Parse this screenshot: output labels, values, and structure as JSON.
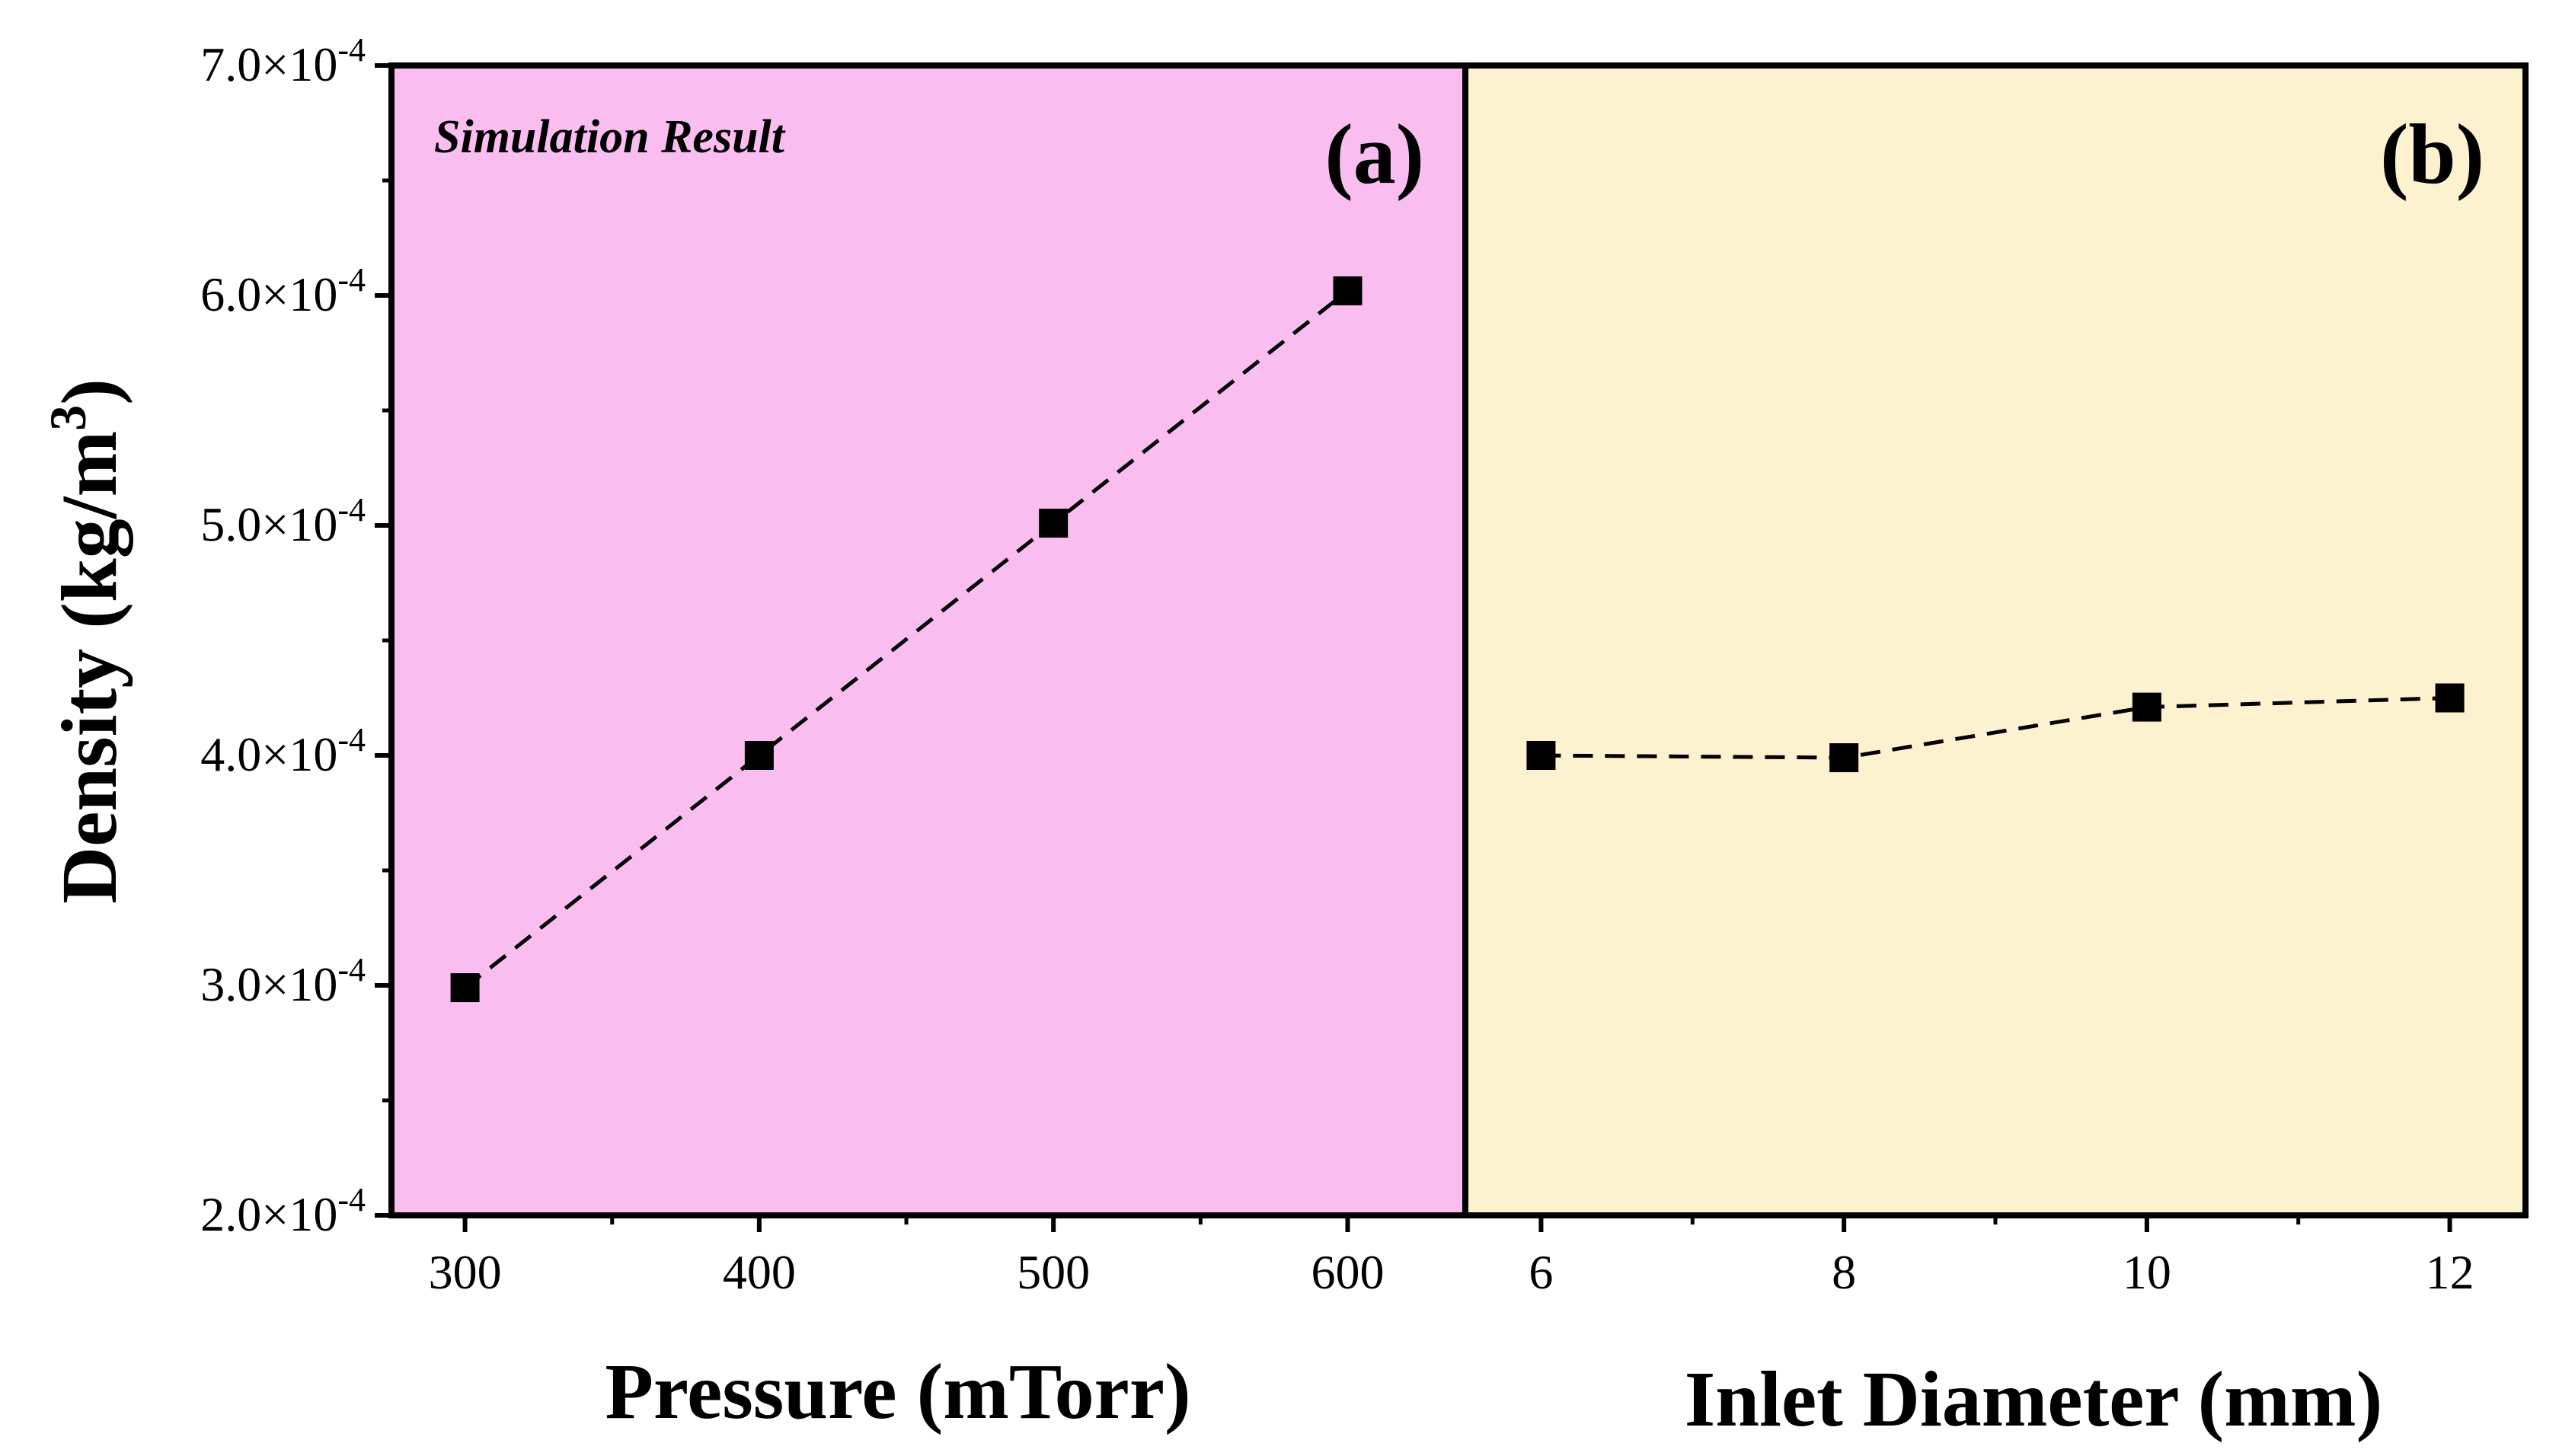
{
  "chart_data": [
    {
      "type": "line",
      "panel_label": "(a)",
      "annotation": "Simulation Result",
      "xlabel": "Pressure (mTorr)",
      "ylabel": "Density (kg/m",
      "ylabel_sup": "3",
      "ylabel_close": ")",
      "x": [
        300,
        400,
        500,
        600
      ],
      "xticks": [
        "300",
        "400",
        "500",
        "600"
      ],
      "xlim": [
        275,
        640
      ],
      "ylim": [
        0.0002,
        0.0007
      ],
      "ytick_values": [
        0.0002,
        0.0003,
        0.0004,
        0.0005,
        0.0006,
        0.0007
      ],
      "ytick_mantissas": [
        "2.0×10",
        "3.0×10",
        "4.0×10",
        "5.0×10",
        "6.0×10",
        "7.0×10"
      ],
      "ytick_exponent": "-4",
      "series": [
        {
          "name": "Density",
          "values": [
            0.000299,
            0.0004,
            0.000501,
            0.000602
          ]
        }
      ],
      "background_color": "#f9bdf0",
      "line_style": "dashed",
      "marker": "square"
    },
    {
      "type": "line",
      "panel_label": "(b)",
      "xlabel": "Inlet Diameter (mm)",
      "x": [
        6,
        8,
        10,
        12
      ],
      "xticks": [
        "6",
        "8",
        "10",
        "12"
      ],
      "xlim": [
        5.5,
        12.5
      ],
      "ylim": [
        0.0002,
        0.0007
      ],
      "series": [
        {
          "name": "Density",
          "values": [
            0.0004,
            0.000399,
            0.000421,
            0.000425
          ]
        }
      ],
      "background_color": "#fdf2d0",
      "line_style": "dashed",
      "marker": "square"
    }
  ]
}
